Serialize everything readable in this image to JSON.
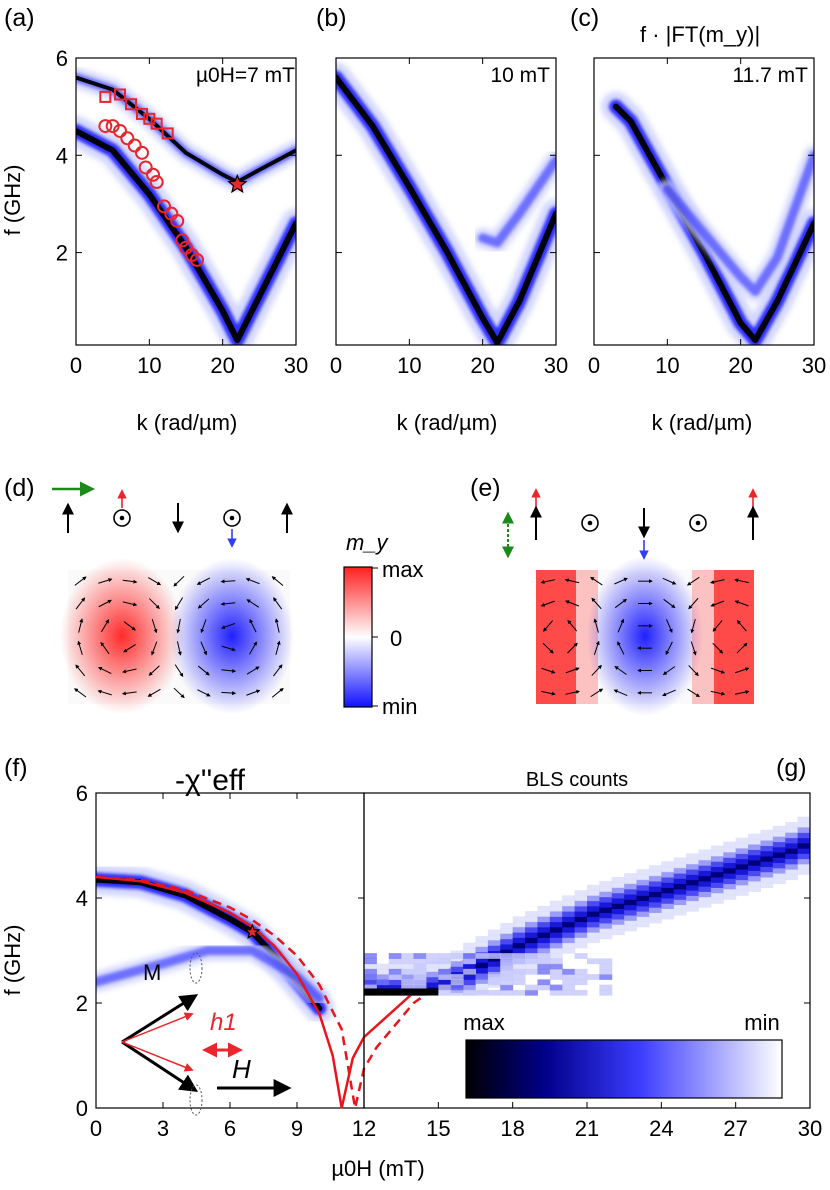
{
  "panel_labels": {
    "a": "(a)",
    "b": "(b)",
    "c": "(c)",
    "d": "(d)",
    "e": "(e)",
    "f": "(f)",
    "g": "(g)"
  },
  "top_row": {
    "ylabel": "f (GHz)",
    "xlabel": "k (rad/µm)",
    "quantity": "f · |FT(m_y)|",
    "field_labels": [
      "µ0H=7 mT",
      "10 mT",
      "11.7 mT"
    ]
  },
  "mode_panels": {
    "colorbar_title": "m_y",
    "colorbar_ticks": [
      "max",
      "0",
      "min"
    ]
  },
  "bottom_row": {
    "title_left": "-χ''eff",
    "title_right": "BLS counts",
    "ylabel": "f (GHz)",
    "xlabel": "µ0H (mT)",
    "colorbar_labels": [
      "max",
      "min"
    ],
    "inset_labels": {
      "magnetization": "M",
      "rf_field": "h1",
      "field": "H"
    }
  },
  "colors": {
    "map_dark": "#000000",
    "map_blue": "#1a1aff",
    "marker_red": "#e8262b",
    "model_line": "#e8161b",
    "mode_positive": "#ff3030",
    "mode_negative": "#2f3dff",
    "green_arrow": "#1b8a1b"
  },
  "chart_data": [
    {
      "type": "heatmap",
      "panel": "a",
      "field_mT": 7,
      "x_label": "k (rad/µm)",
      "y_label": "f (GHz)",
      "xlim": [
        0,
        30
      ],
      "ylim": [
        0.1,
        6
      ],
      "xticks": [
        0,
        10,
        20,
        30
      ],
      "yticks": [
        2,
        4,
        6
      ],
      "branches": [
        {
          "name": "lower",
          "k": [
            0,
            5,
            10,
            15,
            20,
            22,
            25,
            30
          ],
          "f": [
            4.5,
            4.1,
            3.2,
            2.1,
            0.8,
            0.2,
            1.1,
            2.6
          ]
        },
        {
          "name": "upper",
          "k": [
            0,
            5,
            10,
            15,
            20,
            22,
            25,
            30
          ],
          "f": [
            5.6,
            5.35,
            4.75,
            4.05,
            3.6,
            3.45,
            3.7,
            4.1
          ]
        }
      ],
      "squares": {
        "k": [
          4,
          6,
          7.5,
          9,
          10,
          11,
          12.5
        ],
        "f": [
          5.2,
          5.25,
          5.05,
          4.85,
          4.75,
          4.65,
          4.45
        ]
      },
      "circles": {
        "k": [
          4,
          5,
          6,
          7,
          8,
          9,
          9.5,
          10.5,
          11,
          12,
          13,
          13.8,
          14.5,
          15,
          15.8,
          16.5
        ],
        "f": [
          4.6,
          4.6,
          4.5,
          4.35,
          4.2,
          4.05,
          3.75,
          3.6,
          3.45,
          2.95,
          2.8,
          2.65,
          2.25,
          2.1,
          1.95,
          1.85
        ]
      },
      "star": {
        "k": 22,
        "f": 3.4
      }
    },
    {
      "type": "heatmap",
      "panel": "b",
      "field_mT": 10,
      "xlim": [
        0,
        30
      ],
      "ylim": [
        0.1,
        6
      ],
      "xticks": [
        0,
        10,
        20,
        30
      ],
      "branches": [
        {
          "name": "lower",
          "k": [
            0,
            5,
            10,
            15,
            20,
            22,
            25,
            30
          ],
          "f": [
            5.6,
            4.6,
            3.35,
            2.05,
            0.65,
            0.15,
            1.0,
            2.8
          ]
        },
        {
          "name": "upper",
          "k": [
            20,
            22,
            25,
            30
          ],
          "f": [
            2.3,
            2.2,
            2.8,
            3.9
          ]
        }
      ]
    },
    {
      "type": "heatmap",
      "panel": "c",
      "field_mT": 11.7,
      "xlim": [
        0,
        30
      ],
      "ylim": [
        0.1,
        6
      ],
      "xticks": [
        0,
        10,
        20,
        30
      ],
      "branches": [
        {
          "name": "lower",
          "k": [
            3,
            5,
            10,
            15,
            20,
            22,
            25,
            30
          ],
          "f": [
            5.0,
            4.7,
            3.35,
            2.0,
            0.55,
            0.2,
            1.0,
            2.6
          ]
        },
        {
          "name": "upper",
          "k": [
            10,
            15,
            20,
            22,
            25,
            30
          ],
          "f": [
            3.3,
            2.4,
            1.5,
            1.2,
            1.9,
            4.0
          ]
        }
      ]
    },
    {
      "type": "heatmap",
      "panel": "f",
      "x_label": "µ0H (mT)",
      "y_label": "f (GHz)",
      "xlim": [
        0,
        12
      ],
      "ylim": [
        0,
        6
      ],
      "xticks": [
        0,
        3,
        6,
        9,
        12
      ],
      "yticks": [
        0,
        2,
        4,
        6
      ],
      "branches": [
        {
          "name": "main",
          "H": [
            0,
            2,
            4,
            6,
            7,
            8,
            9,
            10
          ],
          "f": [
            4.35,
            4.3,
            4.05,
            3.6,
            3.35,
            2.9,
            2.4,
            1.9
          ]
        },
        {
          "name": "second",
          "H": [
            0,
            3,
            5,
            7,
            9,
            10
          ],
          "f": [
            2.4,
            2.75,
            3.0,
            3.0,
            2.5,
            2.1
          ]
        }
      ],
      "star": {
        "H": 7,
        "f": 3.35
      }
    },
    {
      "type": "heatmap",
      "panel": "g",
      "x_label": "µ0H (mT)",
      "xlim": [
        12,
        30
      ],
      "ylim": [
        0,
        6
      ],
      "xticks": [
        15,
        18,
        21,
        24,
        27,
        30
      ],
      "ridge": {
        "H": [
          12,
          13,
          14,
          15,
          16,
          17,
          18,
          19,
          20,
          21,
          22,
          23,
          24,
          25,
          26,
          27,
          28,
          29,
          30
        ],
        "f": [
          2.2,
          2.2,
          2.2,
          2.3,
          2.6,
          2.85,
          3.1,
          3.3,
          3.5,
          3.7,
          3.85,
          4.0,
          4.15,
          4.3,
          4.45,
          4.6,
          4.75,
          4.9,
          5.1
        ]
      }
    },
    {
      "type": "line",
      "panel": "f-g",
      "xlim": [
        0,
        30
      ],
      "ylim": [
        0,
        6
      ],
      "series": [
        {
          "style": "solid",
          "H": [
            0,
            2,
            4,
            6,
            7,
            8,
            9,
            10,
            10.6,
            11,
            11.5,
            12,
            14,
            16,
            18,
            21,
            24,
            27,
            30
          ],
          "f": [
            4.4,
            4.32,
            4.1,
            3.72,
            3.45,
            3.08,
            2.55,
            1.8,
            1.0,
            0.0,
            0.95,
            1.35,
            2.2,
            2.8,
            3.3,
            3.9,
            4.4,
            4.85,
            5.25
          ]
        },
        {
          "style": "dashed",
          "H": [
            0,
            2,
            4,
            6,
            7,
            8,
            9,
            10,
            11,
            11.6,
            12,
            12.5,
            14,
            16,
            18,
            21,
            24,
            27,
            30
          ],
          "f": [
            4.4,
            4.34,
            4.15,
            3.82,
            3.58,
            3.28,
            2.9,
            2.35,
            1.5,
            0.0,
            0.75,
            1.15,
            2.0,
            2.65,
            3.15,
            3.75,
            4.25,
            4.7,
            5.1
          ]
        }
      ]
    }
  ]
}
